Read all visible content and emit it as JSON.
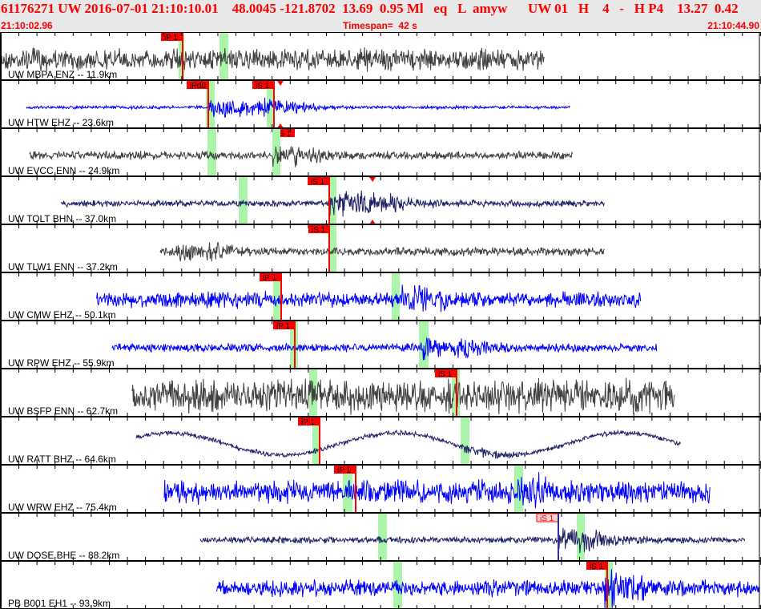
{
  "header": {
    "title": "61176271 UW 2016-07-01 21:10:10.01    48.0045 -121.8702  13.69  0.95 Ml   eq   L  amyw      UW 01   H    4   -   H P4    13.27  0.42",
    "start_time": "21:10:02.96",
    "timespan": "Timespan=  42 s",
    "end_time": "21:10:44.90"
  },
  "colors": {
    "header_bg": "#e8e8e8",
    "header_text": "#ff0000",
    "pick": "#ff0000",
    "window": "#aaf5aa"
  },
  "traces": [
    {
      "label": "UW MBPA ENZ -- 11.9km",
      "color": "#404040",
      "picks": [
        "iP 1"
      ]
    },
    {
      "label": "UW HTW EHZ -- 23.6km",
      "color": "#0000ff",
      "picks": [
        "iPd0",
        "iS 1",
        "iS 1"
      ]
    },
    {
      "label": "UW EVCC ENN -- 24.9km",
      "color": "#404040",
      "picks": []
    },
    {
      "label": "UW TOLT BHN -- 37.0km",
      "color": "#202066",
      "picks": [
        "iS 1"
      ]
    },
    {
      "label": "UW TLW1 ENN -- 37.2km",
      "color": "#404040",
      "picks": [
        "iS 1"
      ]
    },
    {
      "label": "UW CMW EHZ -- 50.1km",
      "color": "#0000ff",
      "picks": [
        "iP 1"
      ]
    },
    {
      "label": "UW RPW EHZ -- 55.9km",
      "color": "#0000ff",
      "picks": [
        "iP 1"
      ]
    },
    {
      "label": "UW BSFP ENN -- 62.7km",
      "color": "#404040",
      "picks": [
        "iS 1"
      ]
    },
    {
      "label": "UW RATT BHZ -- 64.6km",
      "color": "#202066",
      "picks": [
        "iP 1"
      ]
    },
    {
      "label": "UW WRW EHZ -- 75.4km",
      "color": "#0000ff",
      "picks": [
        "iP 1"
      ]
    },
    {
      "label": "UW DOSE BHE -- 88.2km",
      "color": "#202066",
      "picks": [
        "iS 1"
      ]
    },
    {
      "label": "PB B001 EH1 -- 93.9km",
      "color": "#0000ff",
      "picks": [
        "iS 1"
      ]
    }
  ]
}
